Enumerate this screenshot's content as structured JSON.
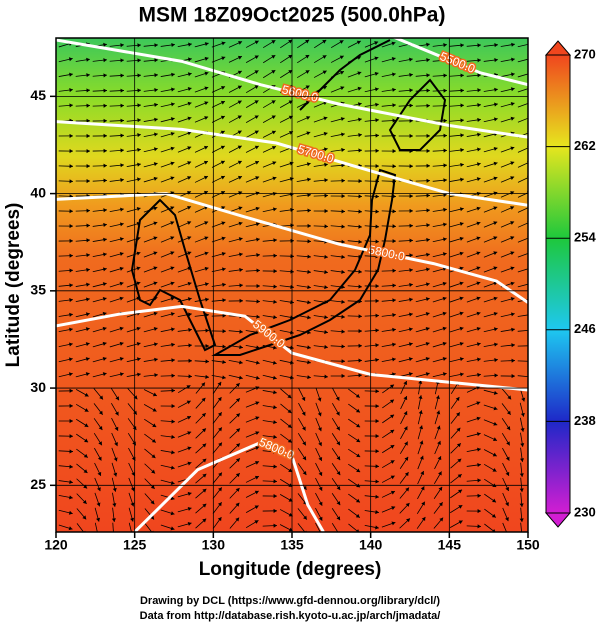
{
  "chart_data": {
    "type": "contour",
    "title": "MSM 18Z09Oct2025 (500.0hPa)",
    "x_label": "Longitude (degrees)",
    "y_label": "Latitude  (degrees)",
    "xlim": [
      120,
      150
    ],
    "ylim": [
      22.6,
      48.0
    ],
    "xticks": [
      120,
      125,
      130,
      135,
      140,
      145,
      150
    ],
    "yticks": [
      25,
      30,
      35,
      40,
      45
    ],
    "grid": true,
    "colorbar": {
      "range": [
        230,
        270
      ],
      "ticks": [
        230,
        238,
        246,
        254,
        262,
        270
      ],
      "colors": [
        "#d21ed2",
        "#1e28c8",
        "#1ec8f0",
        "#1ec83c",
        "#e6e61e",
        "#f0461e"
      ]
    },
    "contours": [
      {
        "label": "5500.0",
        "lon": [
          141,
          144,
          147,
          150
        ],
        "lat": [
          48.2,
          47.2,
          46.2,
          45.6
        ]
      },
      {
        "label": "5600.0",
        "lon": [
          120,
          128,
          133,
          138,
          145,
          150
        ],
        "lat": [
          47.9,
          46.8,
          45.6,
          44.6,
          43.5,
          42.9
        ]
      },
      {
        "label": "5700.0",
        "lon": [
          120,
          128,
          134,
          139,
          145,
          150
        ],
        "lat": [
          43.7,
          43.3,
          42.6,
          41.4,
          40.0,
          39.4
        ]
      },
      {
        "label": "5800.0",
        "lon": [
          120,
          127,
          132,
          138,
          144,
          148,
          150
        ],
        "lat": [
          39.7,
          40.0,
          38.8,
          37.4,
          36.4,
          35.5,
          34.4
        ]
      },
      {
        "label": "5900.0",
        "lon": [
          120,
          124,
          128,
          132,
          135,
          140,
          145,
          150
        ],
        "lat": [
          33.2,
          33.8,
          34.2,
          33.7,
          31.8,
          30.7,
          30.3,
          29.9
        ]
      },
      {
        "label": "5800.0",
        "lon": [
          125,
          129,
          133,
          135,
          136,
          137
        ],
        "lat": [
          22.6,
          25.8,
          27.2,
          26.5,
          24.0,
          22.6
        ]
      }
    ],
    "footer": [
      "Drawing by DCL (https://www.gfd-dennou.org/library/dcl/)",
      "Data from http://database.rish.kyoto-u.ac.jp/arch/jmadata/"
    ]
  }
}
